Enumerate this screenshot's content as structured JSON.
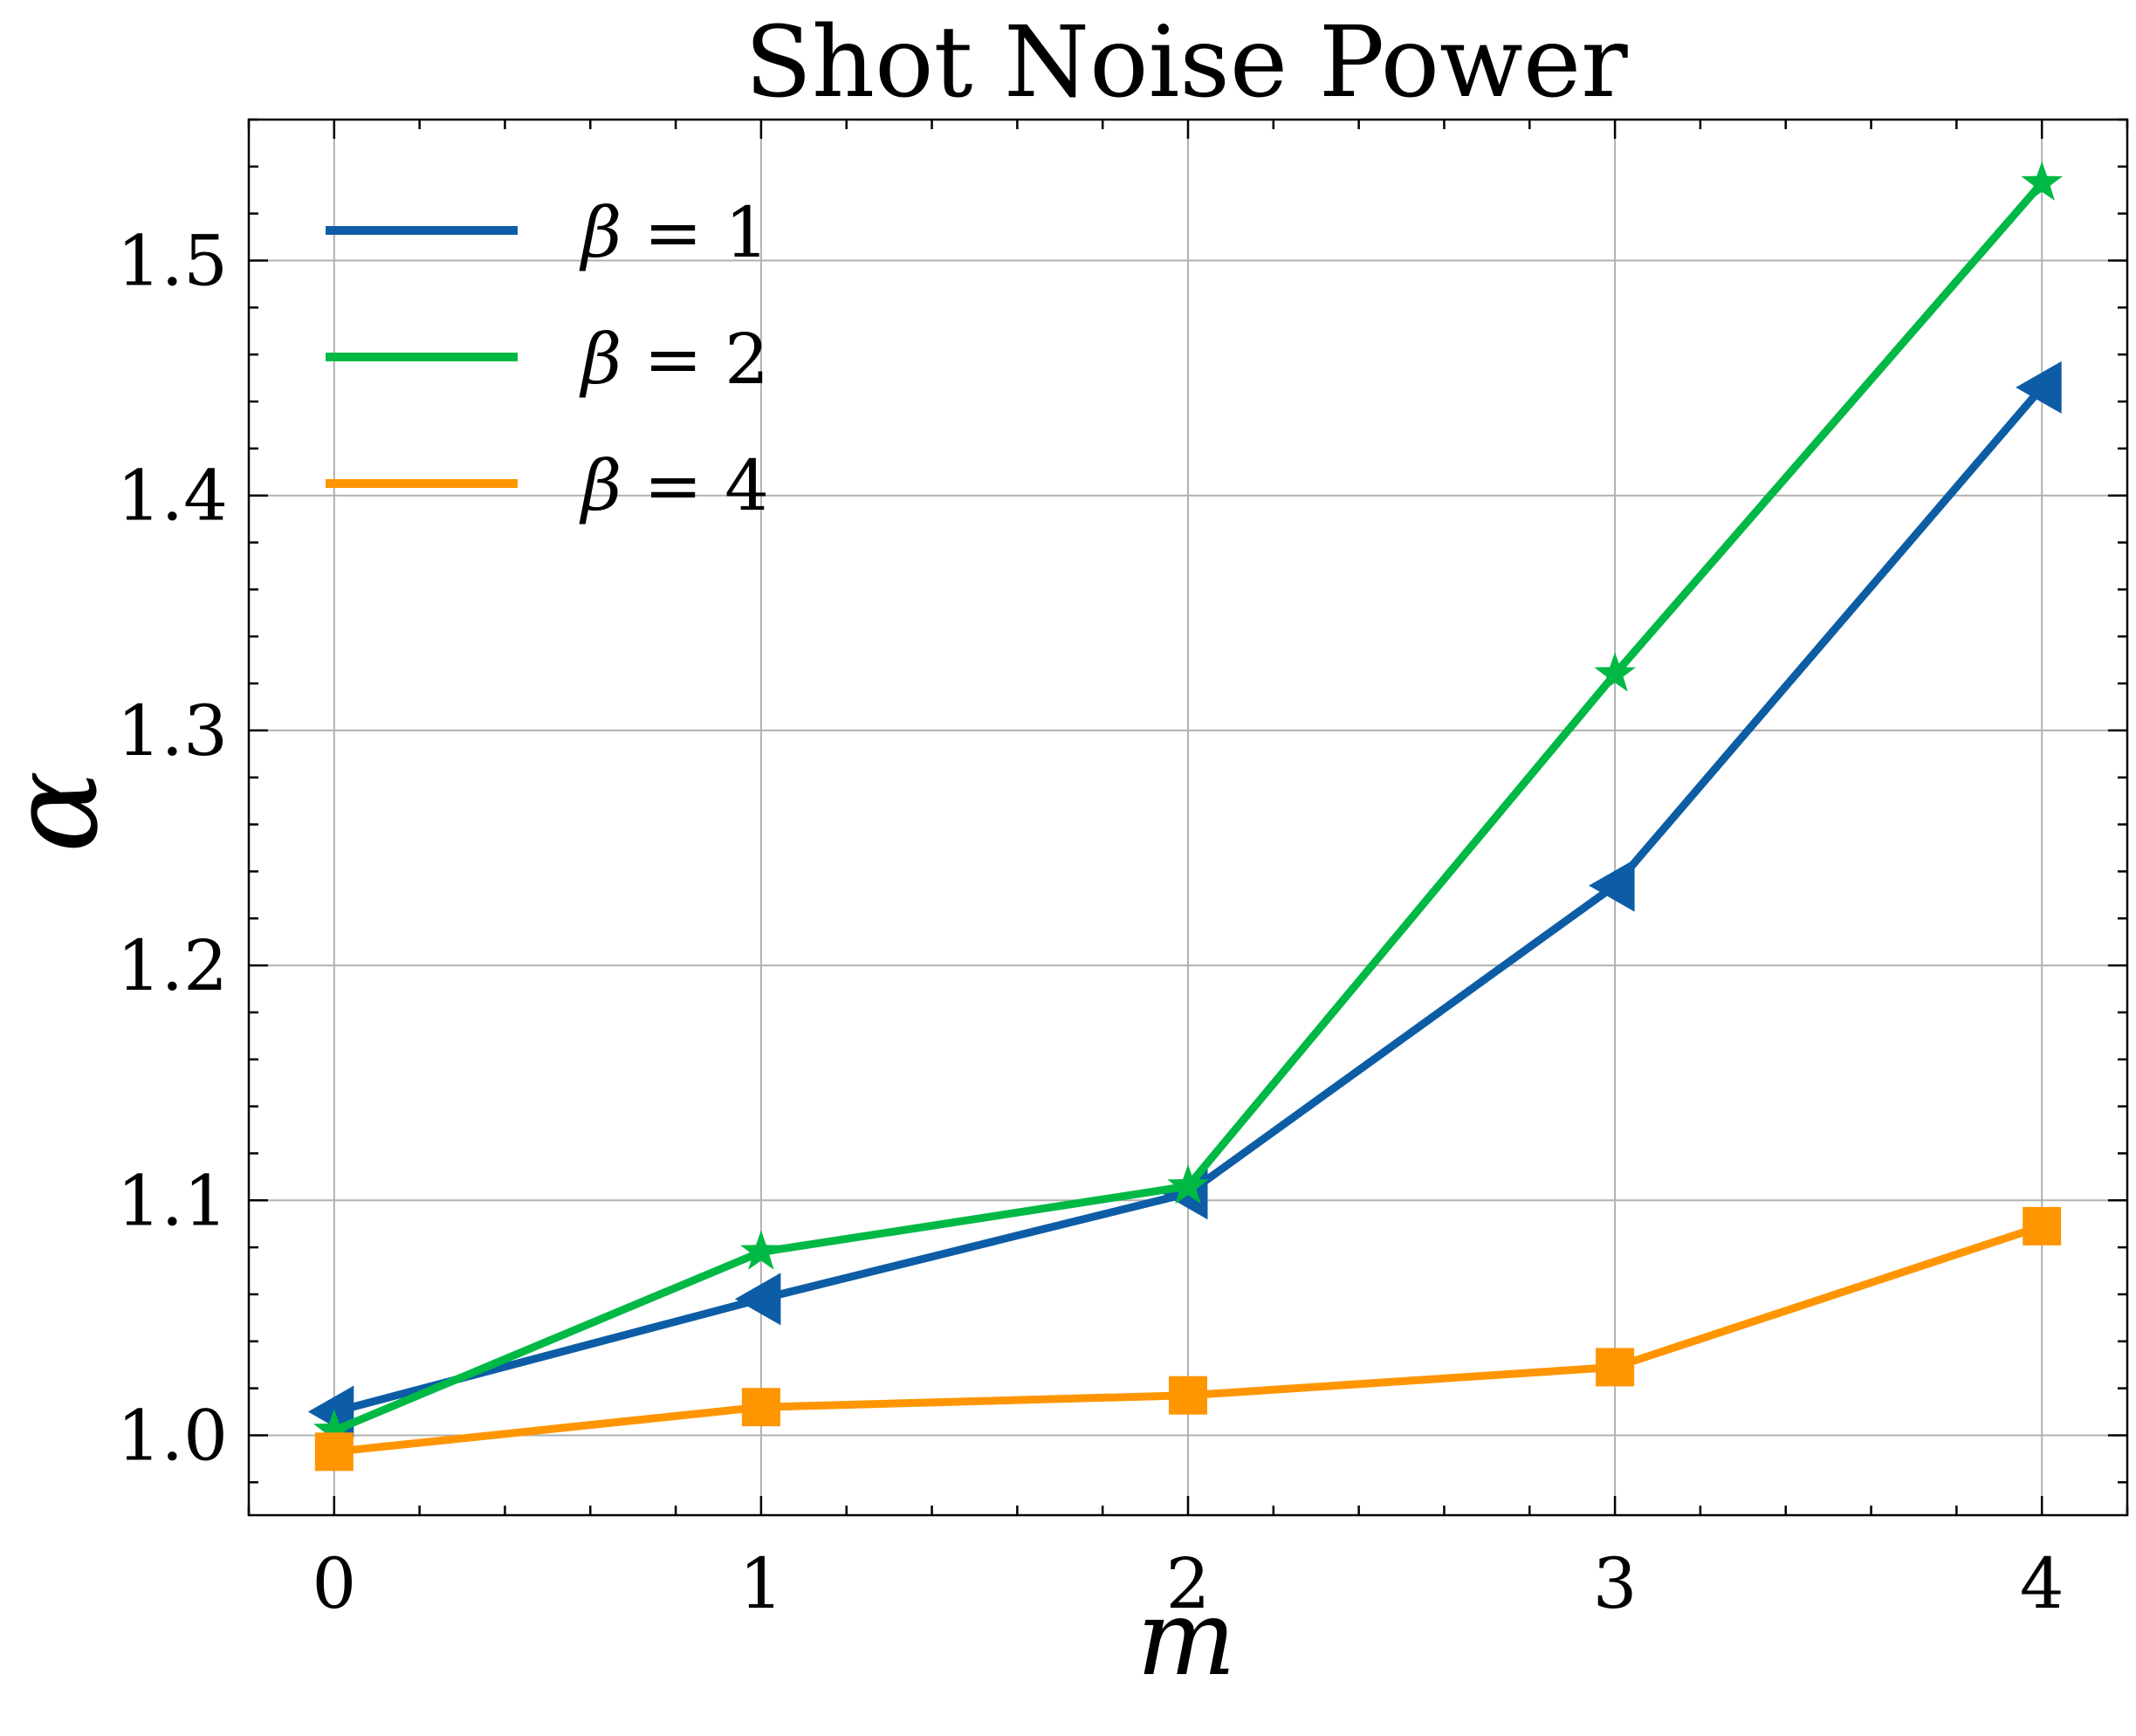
{
  "chart_data": {
    "type": "line",
    "title": "Shot Noise Power",
    "xlabel": "m",
    "ylabel": "α",
    "x": [
      0,
      1,
      2,
      3,
      4
    ],
    "xlim": [
      -0.2,
      4.2
    ],
    "ylim": [
      0.966,
      1.56
    ],
    "xticks": [
      0,
      1,
      2,
      3,
      4
    ],
    "yticks": [
      1.0,
      1.1,
      1.2,
      1.3,
      1.4,
      1.5
    ],
    "xtick_labels": [
      "0",
      "1",
      "2",
      "3",
      "4"
    ],
    "ytick_labels": [
      "1.0",
      "1.1",
      "1.2",
      "1.3",
      "1.4",
      "1.5"
    ],
    "grid": true,
    "legend_position": "top-left",
    "series": [
      {
        "name": "β = 1",
        "legend_symbol": "β",
        "legend_value": "= 1",
        "color": "#0C5DA5",
        "marker": "triangle-left",
        "values": [
          1.01,
          1.058,
          1.103,
          1.234,
          1.446
        ]
      },
      {
        "name": "β = 2",
        "legend_symbol": "β",
        "legend_value": "= 2",
        "color": "#00B945",
        "marker": "star",
        "values": [
          1.002,
          1.078,
          1.106,
          1.324,
          1.533
        ]
      },
      {
        "name": "β = 4",
        "legend_symbol": "β",
        "legend_value": "= 4",
        "color": "#FF9500",
        "marker": "square",
        "values": [
          0.993,
          1.012,
          1.017,
          1.029,
          1.089
        ]
      }
    ]
  }
}
